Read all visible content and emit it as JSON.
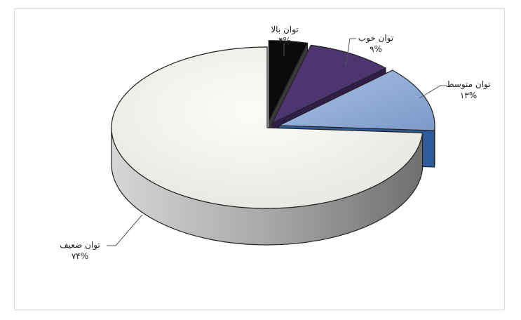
{
  "chart_data": {
    "type": "pie",
    "style": "3d-exploded",
    "title": "",
    "slices": [
      {
        "label": "توان بالا",
        "value": 4,
        "value_label": "۴%",
        "color": "#0a0a0a",
        "side_color": "#3a3a3a"
      },
      {
        "label": "توان خوب",
        "value": 9,
        "value_label": "۹%",
        "color": "#4d3570",
        "side_color": "#2f1f48"
      },
      {
        "label": "توان متوسط",
        "value": 13,
        "value_label": "۱۳%",
        "color": "#8ea9d6",
        "side_color": "#2f5c9c"
      },
      {
        "label": "توان ضعیف",
        "value": 74,
        "value_label": "۷۴%",
        "color": "#f2f2ee",
        "side_color": "#9a9a9a"
      }
    ]
  }
}
